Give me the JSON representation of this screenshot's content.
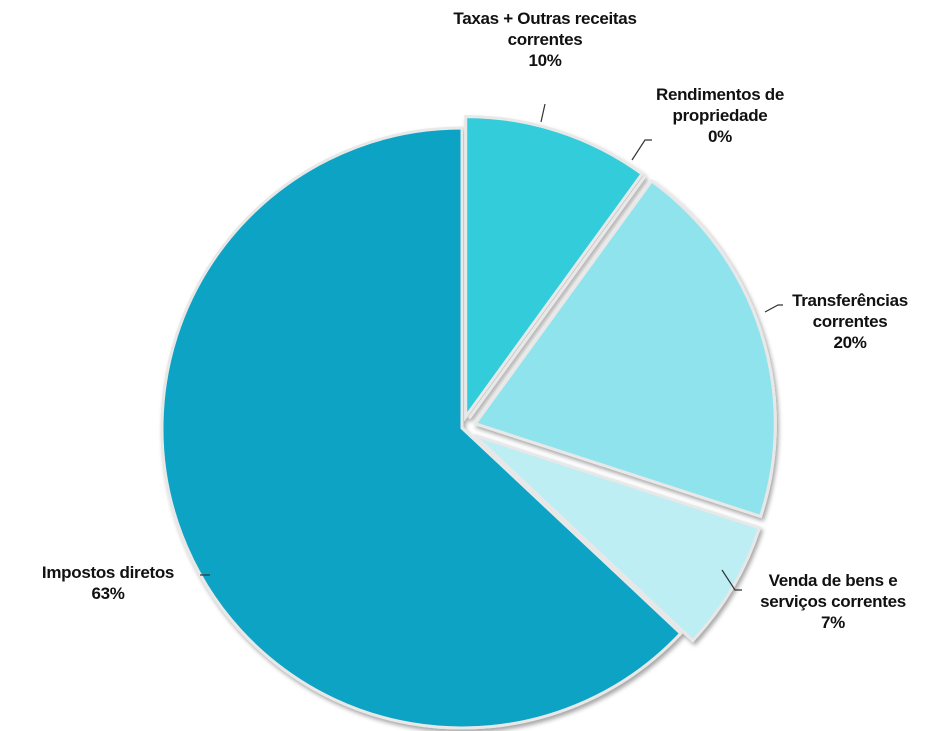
{
  "chart_data": {
    "type": "pie",
    "categories": [
      "Taxas + Outras receitas correntes",
      "Rendimentos de propriedade",
      "Transferências correntes",
      "Venda de bens e serviços correntes",
      "Impostos diretos"
    ],
    "values": [
      10,
      0,
      20,
      7,
      63
    ],
    "value_labels": [
      "10%",
      "0%",
      "20%",
      "7%",
      "63%"
    ],
    "colors": [
      "#33ccdb",
      "#1fb8cc",
      "#8ee3ed",
      "#bdeef3",
      "#0aa3c4"
    ]
  }
}
